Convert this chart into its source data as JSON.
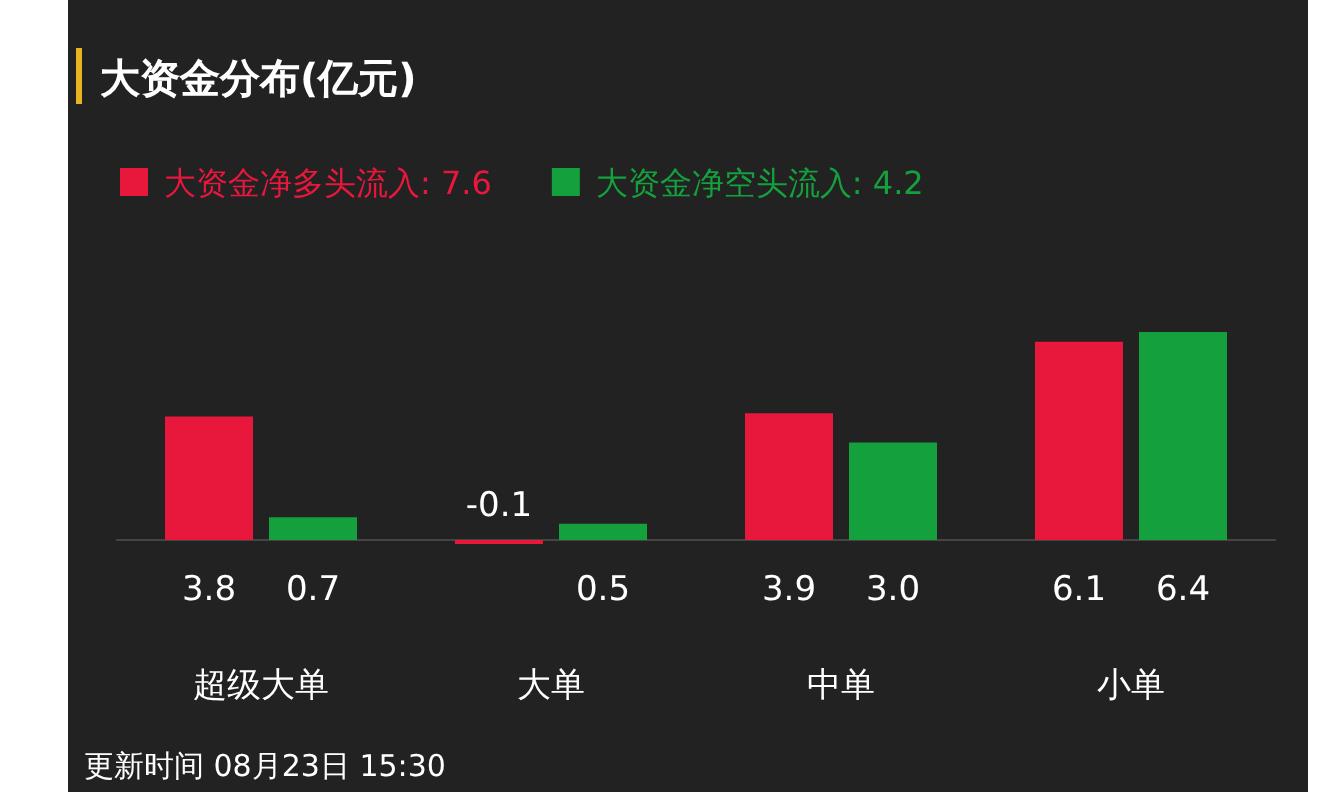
{
  "chart_data": {
    "type": "bar",
    "title": "大资金分布(亿元)",
    "categories": [
      "超级大单",
      "大单",
      "中单",
      "小单"
    ],
    "series": [
      {
        "name": "大资金净多头流入: 7.6",
        "color": "#e8173c",
        "values": [
          3.8,
          -0.1,
          3.9,
          6.1
        ]
      },
      {
        "name": "大资金净空头流入: 4.2",
        "color": "#14a03c",
        "values": [
          0.7,
          0.5,
          3.0,
          6.4
        ],
        "value_labels": [
          "0.7",
          "0.5",
          "3.0",
          "6.4"
        ]
      }
    ],
    "data_labels": true,
    "legend": "top left",
    "annotations": [
      "更新时间 08月23日 15:30"
    ]
  }
}
